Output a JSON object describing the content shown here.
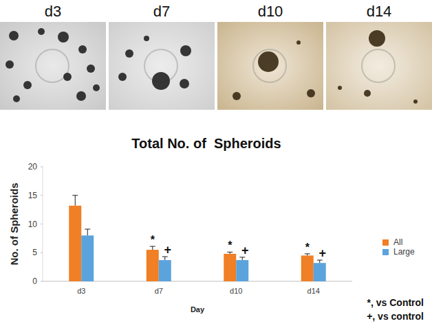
{
  "panels": [
    {
      "label": "d3"
    },
    {
      "label": "d7"
    },
    {
      "label": "d10"
    },
    {
      "label": "d14"
    }
  ],
  "chart_data": {
    "type": "bar",
    "title": "Total No. of  Spheroids",
    "x_label": "Day",
    "y_label": "No. of Spheroids",
    "categories": [
      "d3",
      "d7",
      "d10",
      "d14"
    ],
    "series": [
      {
        "name": "All",
        "color": "#f07f25",
        "values": [
          13.2,
          5.5,
          4.8,
          4.5
        ],
        "errors": [
          1.8,
          0.6,
          0.3,
          0.3
        ],
        "significance": [
          null,
          "*",
          "*",
          "*"
        ]
      },
      {
        "name": "Large",
        "color": "#5ba3dc",
        "values": [
          8.0,
          3.7,
          3.7,
          3.2
        ],
        "errors": [
          1.1,
          0.6,
          0.5,
          0.5
        ],
        "significance": [
          null,
          "+",
          "+",
          "+"
        ]
      }
    ],
    "ylim": [
      0,
      20
    ],
    "yticks": [
      0,
      5,
      10,
      15,
      20
    ],
    "grid": false,
    "legend": "right",
    "annotations": [
      "*, vs Control",
      "+, vs control"
    ]
  }
}
